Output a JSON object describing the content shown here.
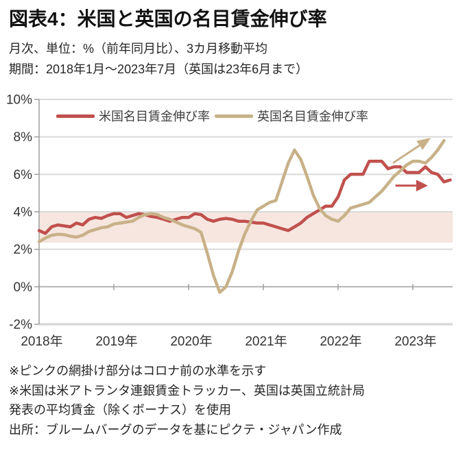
{
  "header": {
    "title": "図表4：米国と英国の名目賃金伸び率",
    "subtitle1": "月次、単位：%（前年同月比）、3カ月移動平均",
    "subtitle2": "期間：2018年1月～2023年7月（英国は23年6月まで）"
  },
  "notes": {
    "line1": "※ピンクの網掛け部分はコロナ前の水準を示す",
    "line2": "※米国は米アトランタ連銀賃金トラッカー、英国は英国立統計局",
    "line3": "発表の平均賃金（除くボーナス）を使用",
    "source": "出所：ブルームバーグのデータを基にピクテ・ジャパン作成"
  },
  "colors": {
    "us_line": "#C0504D",
    "uk_line": "#C8B188",
    "band": "#F6E6DF",
    "grid": "#D9D9D9",
    "axis": "#9E9E9E",
    "tick_text": "#333333"
  },
  "chart_data": {
    "type": "line",
    "title": "米国と英国の名目賃金伸び率",
    "x_start": "2018-01",
    "x_interval": "month",
    "x_tick_months": [
      0,
      12,
      24,
      36,
      48,
      60
    ],
    "x_tick_labels": [
      "2018年",
      "2019年",
      "2020年",
      "2021年",
      "2022年",
      "2023年"
    ],
    "y_tick_values": [
      10,
      8,
      6,
      4,
      2,
      0,
      -2
    ],
    "y_tick_labels": [
      "10%",
      "8%",
      "6%",
      "4%",
      "2%",
      "0%",
      "-2%"
    ],
    "ylim": [
      -2,
      10
    ],
    "grid": true,
    "legend_position": "top-inside",
    "band": {
      "from": 2.35,
      "to": 4.0,
      "label": "コロナ前の水準"
    },
    "series": [
      {
        "name": "米国名目賃金伸び率",
        "color": "#C0504D",
        "values": [
          3.0,
          2.85,
          3.2,
          3.3,
          3.25,
          3.2,
          3.4,
          3.3,
          3.6,
          3.7,
          3.65,
          3.8,
          3.9,
          3.9,
          3.7,
          3.8,
          3.9,
          3.85,
          3.75,
          3.7,
          3.6,
          3.5,
          3.6,
          3.7,
          3.7,
          3.9,
          3.85,
          3.6,
          3.5,
          3.6,
          3.65,
          3.6,
          3.5,
          3.5,
          3.45,
          3.4,
          3.4,
          3.3,
          3.2,
          3.1,
          3.0,
          3.2,
          3.4,
          3.7,
          3.9,
          4.1,
          4.3,
          4.3,
          4.8,
          5.7,
          6.0,
          6.0,
          6.0,
          6.7,
          6.7,
          6.7,
          6.3,
          6.4,
          6.4,
          6.1,
          6.1,
          6.1,
          6.4,
          6.1,
          6.0,
          5.6,
          5.7
        ]
      },
      {
        "name": "英国名目賃金伸び率",
        "color": "#C8B188",
        "values": [
          2.4,
          2.6,
          2.75,
          2.8,
          2.78,
          2.7,
          2.65,
          2.75,
          2.95,
          3.05,
          3.15,
          3.2,
          3.35,
          3.4,
          3.45,
          3.5,
          3.7,
          3.85,
          3.9,
          3.85,
          3.7,
          3.6,
          3.45,
          3.3,
          3.2,
          3.1,
          2.9,
          1.8,
          0.6,
          -0.3,
          0.0,
          0.8,
          1.9,
          2.8,
          3.5,
          4.1,
          4.3,
          4.5,
          4.6,
          5.6,
          6.6,
          7.3,
          6.8,
          5.9,
          4.9,
          4.2,
          3.8,
          3.6,
          3.5,
          3.8,
          4.2,
          4.3,
          4.4,
          4.5,
          4.8,
          5.1,
          5.5,
          5.9,
          6.2,
          6.5,
          6.7,
          6.7,
          6.6,
          6.9,
          7.3,
          7.8
        ]
      }
    ],
    "annotations": [
      {
        "name": "uk-trend-arrow",
        "color": "#C8B188",
        "from": [
          56.8,
          6.6
        ],
        "to": [
          62.9,
          7.95
        ],
        "head_len": 20,
        "head_half_width": 8
      },
      {
        "name": "us-trend-arrow",
        "color": "#C0504D",
        "from": [
          57.2,
          5.4
        ],
        "to": [
          62.4,
          5.4
        ],
        "head_len": 17,
        "head_half_width": 8.5
      }
    ]
  }
}
